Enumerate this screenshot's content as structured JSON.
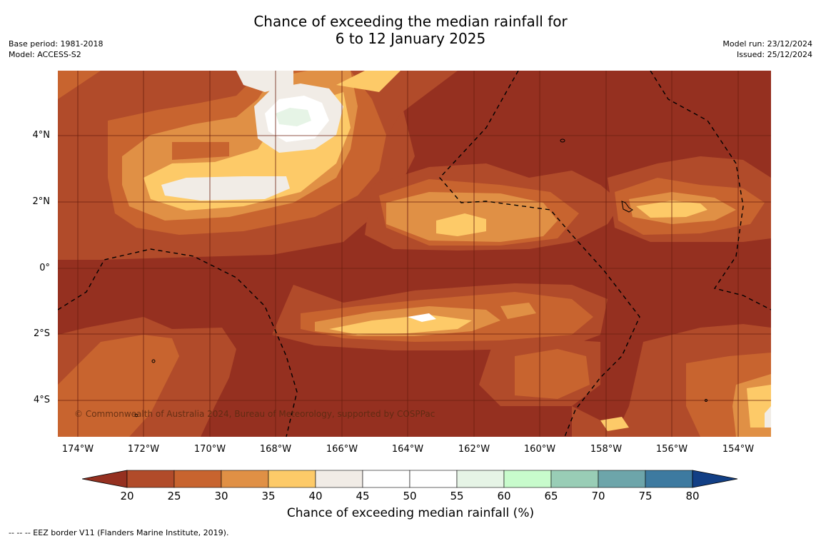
{
  "title_line1": "Chance of exceeding the median rainfall for",
  "title_line2": "6 to 12 January 2025",
  "left_meta": {
    "base_period": "Base period: 1981-2018",
    "model": "Model: ACCESS-S2"
  },
  "right_meta": {
    "model_run": "Model run: 23/12/2024",
    "issued": "Issued: 25/12/2024"
  },
  "lat_labels": [
    "4°N",
    "2°N",
    "0°",
    "2°S",
    "4°S"
  ],
  "lon_labels": [
    "174°W",
    "172°W",
    "170°W",
    "168°W",
    "166°W",
    "164°W",
    "162°W",
    "160°W",
    "158°W",
    "156°W",
    "154°W"
  ],
  "copyright": "© Commonwealth of Australia 2024, Bureau of Meteorology, supported by COSPPac",
  "colorbar": {
    "ticks": [
      "20",
      "25",
      "30",
      "35",
      "40",
      "45",
      "50",
      "55",
      "60",
      "65",
      "70",
      "75",
      "80"
    ],
    "colors": [
      "#953020",
      "#b14b2a",
      "#c8642f",
      "#e09045",
      "#fdca68",
      "#f1ece6",
      "#ffffff",
      "#ffffff",
      "#e6f4e6",
      "#c8fbcc",
      "#99cdb6",
      "#6da5aa",
      "#3d7aa0",
      "#123f85"
    ],
    "title": "Chance of exceeding median rainfall (%)"
  },
  "footer": "--  --  -- EEZ border V11 (Flanders Marine Institute, 2019)."
}
